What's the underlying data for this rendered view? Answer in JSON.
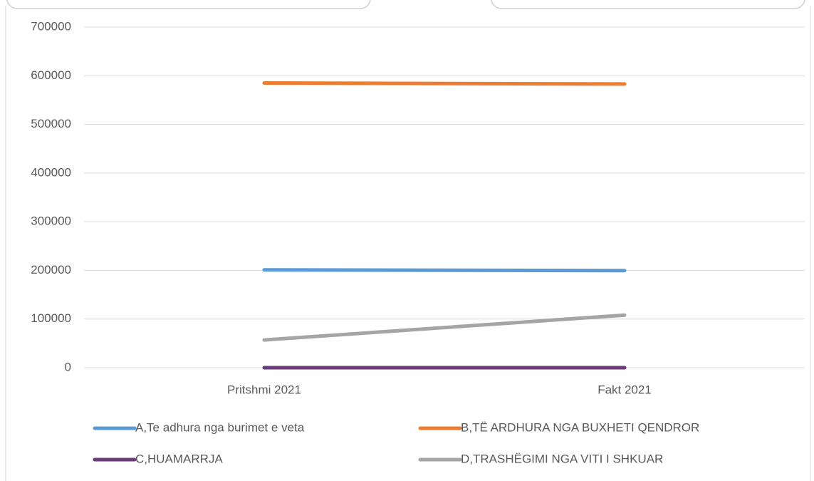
{
  "chart_data": {
    "type": "line",
    "categories": [
      "Pritshmi 2021",
      "Fakt 2021"
    ],
    "series": [
      {
        "name": "A,Te adhura nga burimet e veta",
        "color": "#5b9bd5",
        "values": [
          201000,
          199500
        ]
      },
      {
        "name": "B,TË ARDHURA NGA BUXHETI QENDROR",
        "color": "#ed7d31",
        "values": [
          585000,
          583000
        ]
      },
      {
        "name": "C,HUAMARRJA",
        "color": "#6a3d7a",
        "values": [
          0,
          0
        ]
      },
      {
        "name": "D,TRASHËGIMI NGA VITI I SHKUAR",
        "color": "#a5a5a5",
        "values": [
          57000,
          108000
        ]
      }
    ],
    "ylim": [
      0,
      700000
    ],
    "yticks": [
      0,
      100000,
      200000,
      300000,
      400000,
      500000,
      600000,
      700000
    ],
    "grid": true,
    "legend": "bottom"
  }
}
